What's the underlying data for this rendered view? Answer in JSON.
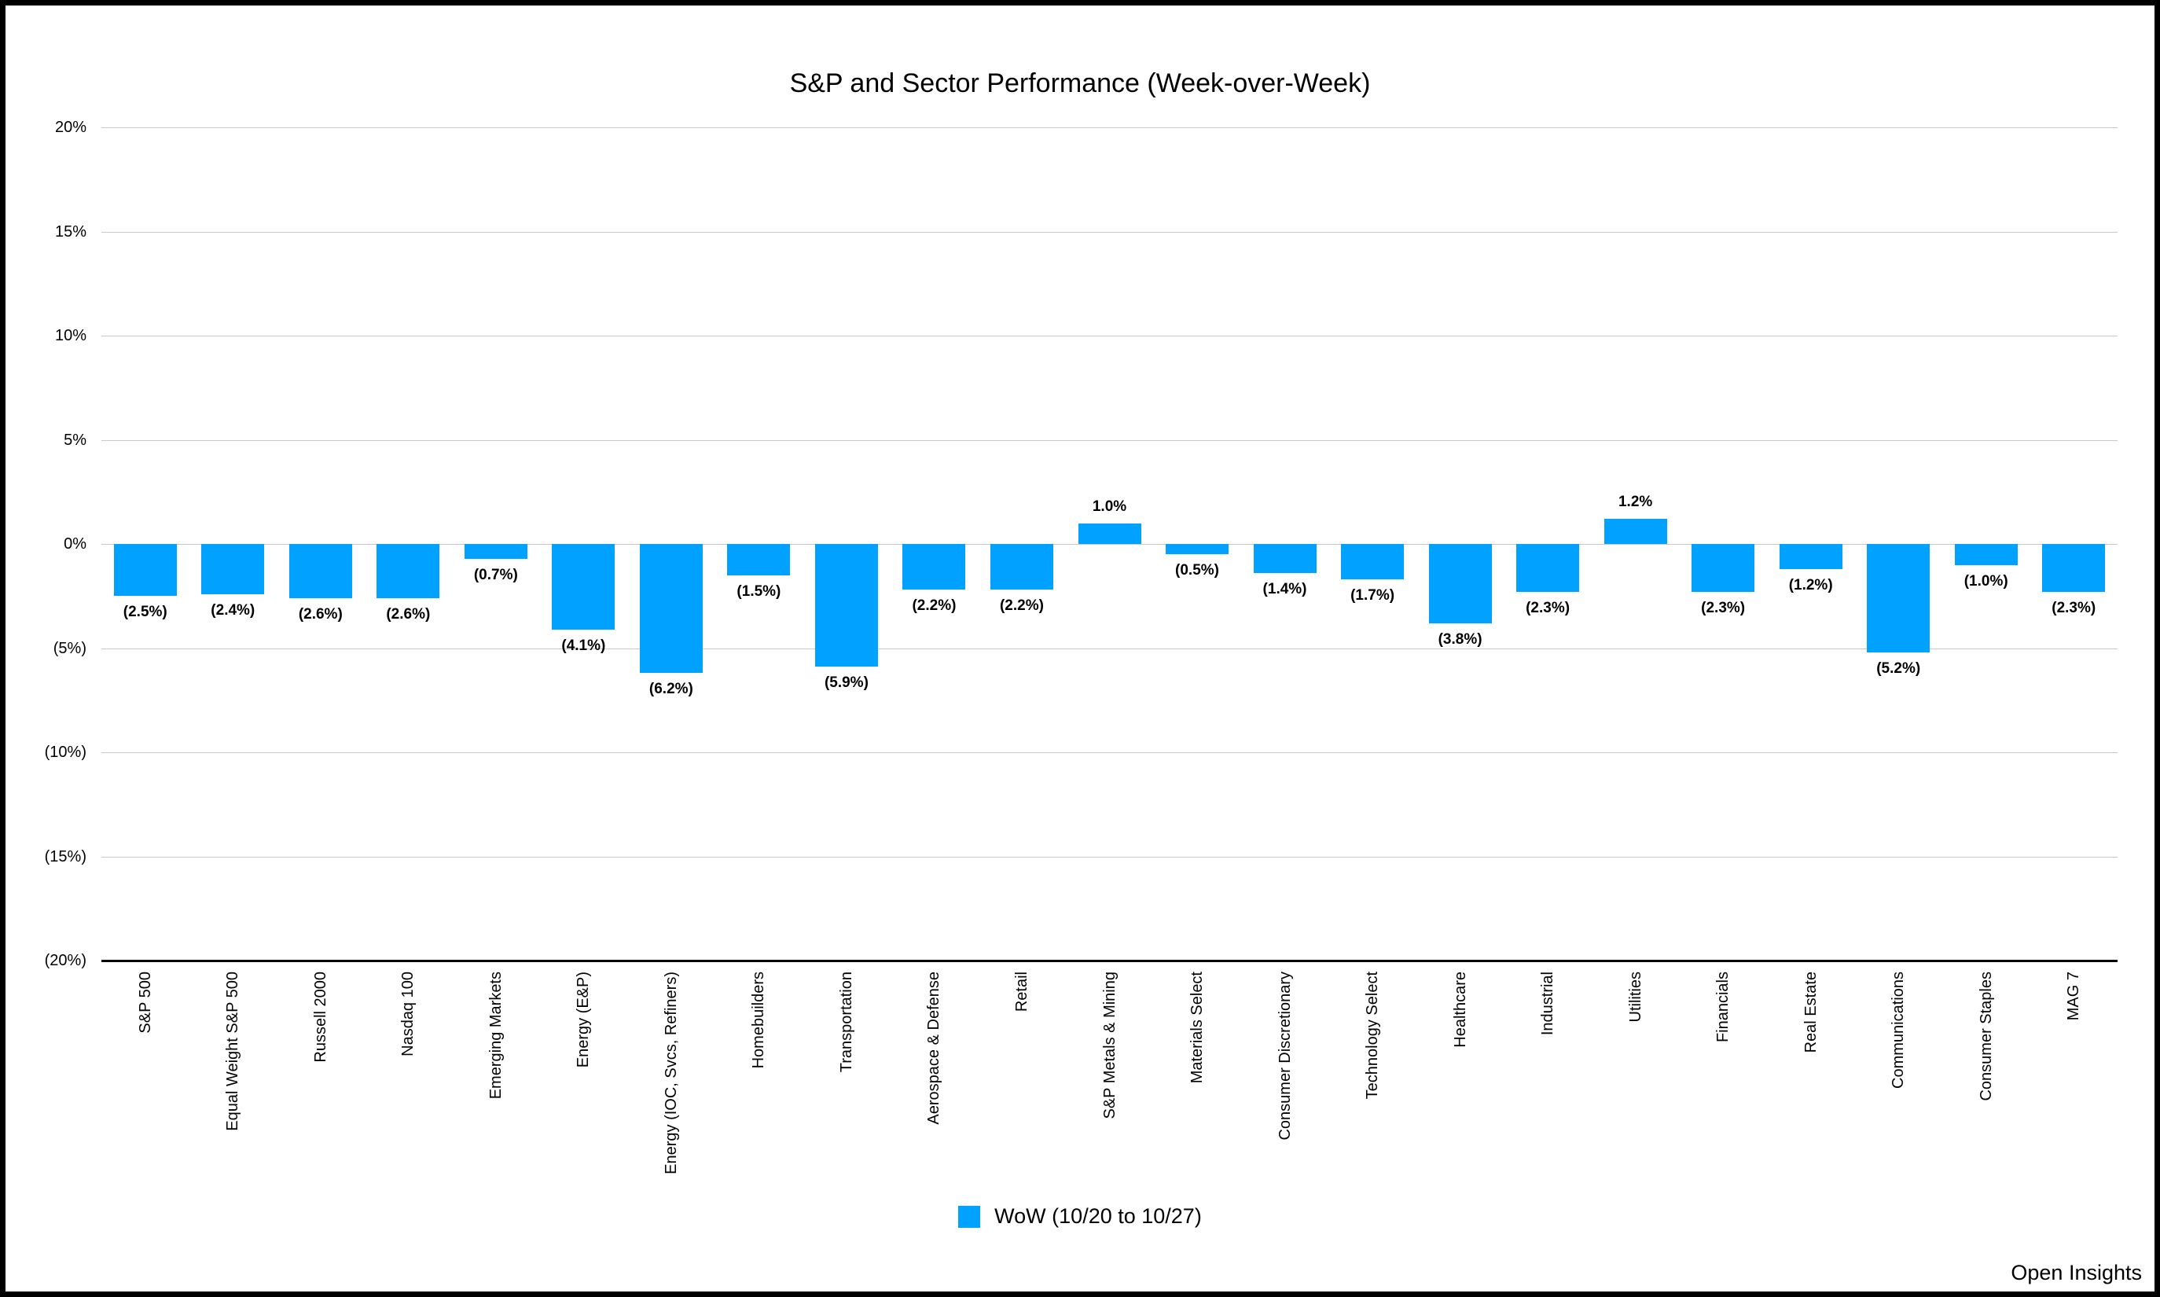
{
  "watermark": "Open Insights",
  "legend": {
    "label": "WoW (10/20 to 10/27)"
  },
  "chart_data": {
    "type": "bar",
    "title": "S&P and Sector Performance (Week-over-Week)",
    "categories": [
      "S&P 500",
      "Equal Weight S&P 500",
      "Russell 2000",
      "Nasdaq 100",
      "Emerging Markets",
      "Energy (E&P)",
      "Energy (IOC, Svcs, Refiners)",
      "Homebuilders",
      "Transportation",
      "Aerospace & Defense",
      "Retail",
      "S&P Metals & Mining",
      "Materials Select",
      "Consumer Discretionary",
      "Technology Select",
      "Healthcare",
      "Industrial",
      "Utilities",
      "Financials",
      "Real Estate",
      "Communications",
      "Consumer Staples",
      "MAG 7"
    ],
    "series": [
      {
        "name": "WoW (10/20 to 10/27)",
        "values": [
          -2.5,
          -2.4,
          -2.6,
          -2.6,
          -0.7,
          -4.1,
          -6.2,
          -1.5,
          -5.9,
          -2.2,
          -2.2,
          1.0,
          -0.5,
          -1.4,
          -1.7,
          -3.8,
          -2.3,
          1.2,
          -2.3,
          -1.2,
          -5.2,
          -1.0,
          -2.3
        ],
        "data_labels": [
          "(2.5%)",
          "(2.4%)",
          "(2.6%)",
          "(2.6%)",
          "(0.7%)",
          "(4.1%)",
          "(6.2%)",
          "(1.5%)",
          "(5.9%)",
          "(2.2%)",
          "(2.2%)",
          "1.0%",
          "(0.5%)",
          "(1.4%)",
          "(1.7%)",
          "(3.8%)",
          "(2.3%)",
          "1.2%",
          "(2.3%)",
          "(1.2%)",
          "(5.2%)",
          "(1.0%)",
          "(2.3%)"
        ]
      }
    ],
    "xlabel": "",
    "ylabel": "",
    "ylim": [
      -20,
      20
    ],
    "ytick_step": 5,
    "ytick_labels": [
      "20%",
      "15%",
      "10%",
      "5%",
      "0%",
      "(5%)",
      "(10%)",
      "(15%)",
      "(20%)"
    ],
    "grid": true,
    "legend_position": "bottom",
    "bar_color": "#00A1FF",
    "gridline_color": "#c9c9c9",
    "axis_color": "#000000"
  }
}
